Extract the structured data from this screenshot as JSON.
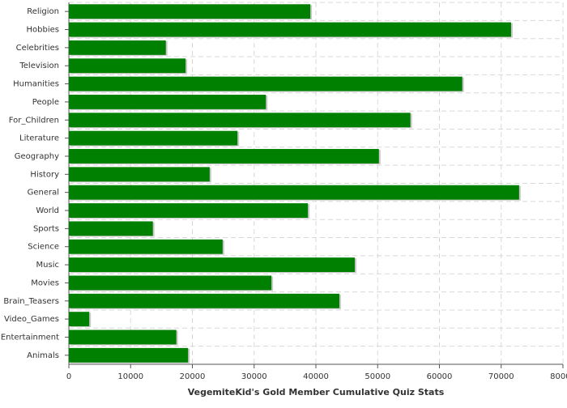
{
  "chart_data": {
    "type": "barh",
    "title": "VegemiteKid's Gold Member Cumulative Quiz Stats",
    "categories": [
      "Religion",
      "Hobbies",
      "Celebrities",
      "Television",
      "Humanities",
      "People",
      "For_Children",
      "Literature",
      "Geography",
      "History",
      "General",
      "World",
      "Sports",
      "Science",
      "Music",
      "Movies",
      "Brain_Teasers",
      "Video_Games",
      "Entertainment",
      "Animals"
    ],
    "values": [
      39100,
      71600,
      15700,
      18900,
      63700,
      31900,
      55300,
      27300,
      50200,
      22800,
      72900,
      38700,
      13600,
      24900,
      46300,
      32800,
      43800,
      3300,
      17400,
      19300
    ],
    "color": "#008000",
    "xlim": [
      0,
      80000
    ],
    "xticks": [
      0,
      10000,
      20000,
      30000,
      40000,
      50000,
      60000,
      70000,
      80000
    ],
    "grid": true
  }
}
